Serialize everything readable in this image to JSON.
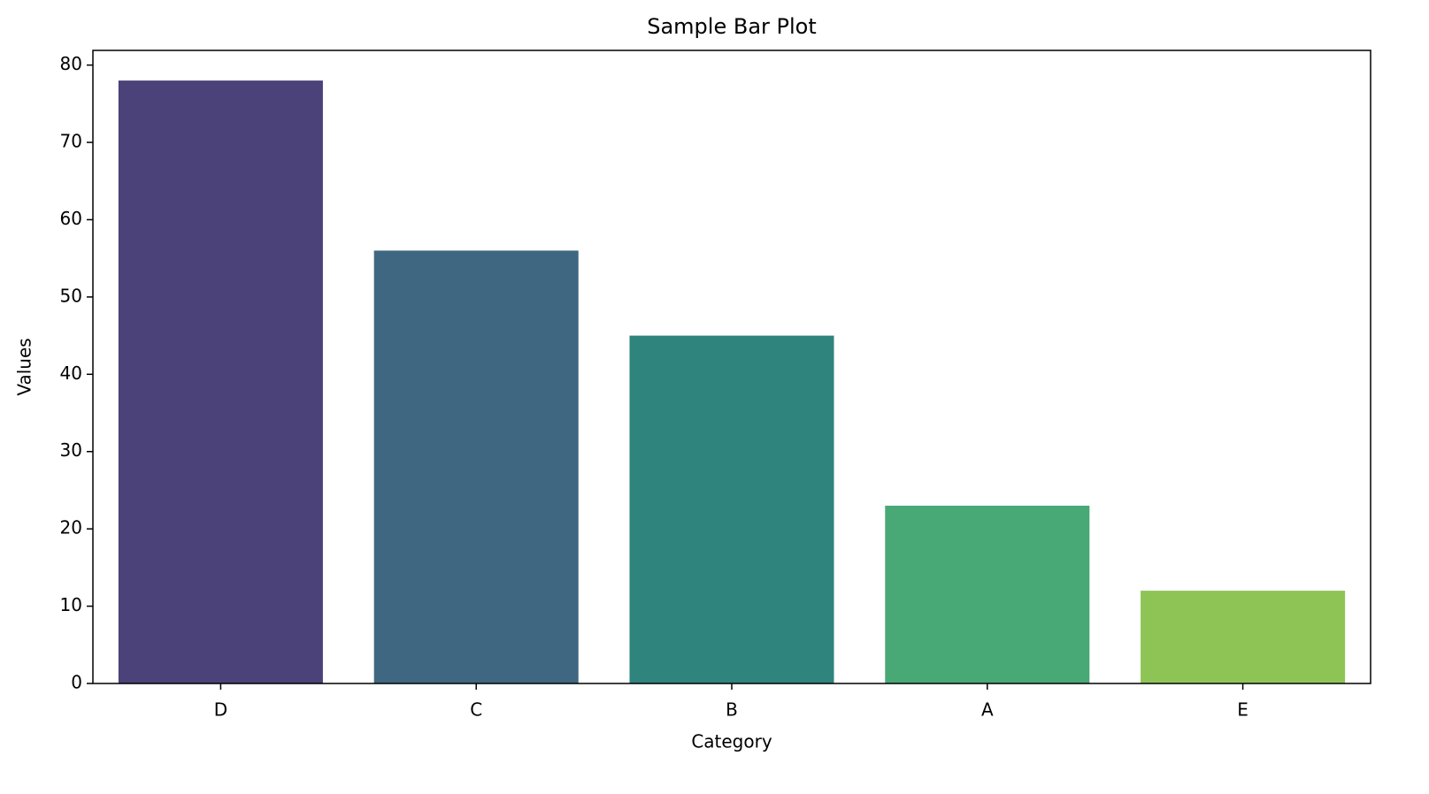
{
  "chart_data": {
    "type": "bar",
    "title": "Sample Bar Plot",
    "x_label": "Category",
    "y_label": "Values",
    "categories": [
      "D",
      "C",
      "B",
      "A",
      "E"
    ],
    "values": [
      78,
      56,
      45,
      23,
      12
    ],
    "colors": [
      "#4a4279",
      "#3f6781",
      "#2f847e",
      "#48a876",
      "#8ec456"
    ],
    "ylim": [
      0,
      81.9
    ],
    "yticks": [
      0,
      10,
      20,
      30,
      40,
      50,
      60,
      70,
      80
    ],
    "grid": false
  }
}
